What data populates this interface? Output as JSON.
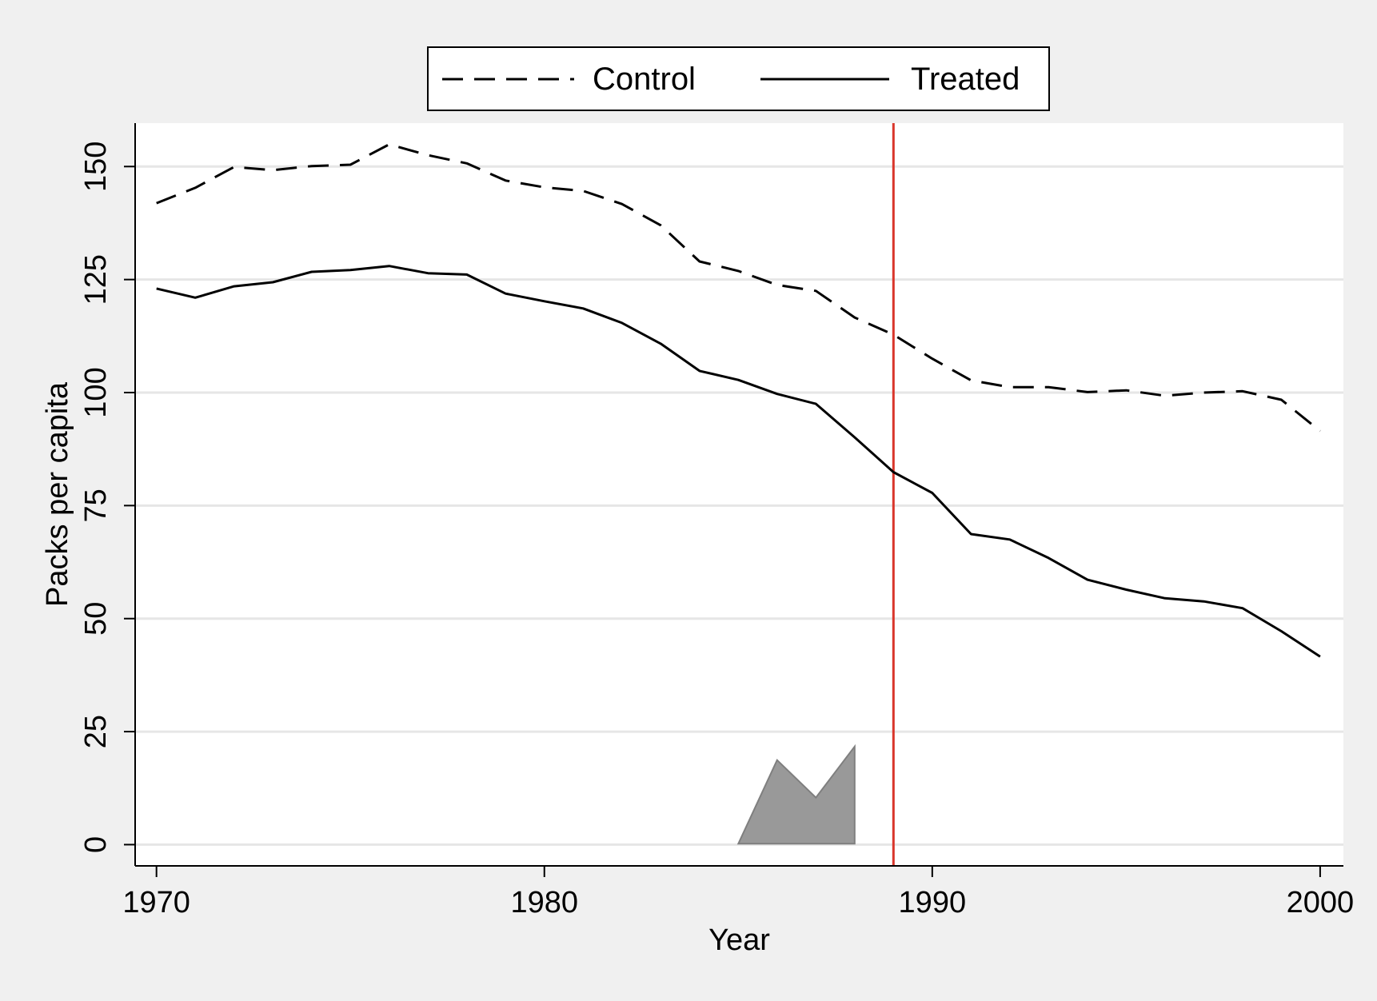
{
  "chart_data": {
    "type": "line",
    "title": "",
    "xlabel": "Year",
    "ylabel": "Packs per capita",
    "xlim": [
      1969.45,
      2000.6
    ],
    "ylim": [
      -4.7,
      159.6
    ],
    "x_ticks": [
      1970,
      1980,
      1990,
      2000
    ],
    "y_ticks": [
      0,
      25,
      50,
      75,
      100,
      125,
      150
    ],
    "grid": "horizontal",
    "legend_position": "top-center",
    "x": [
      1970,
      1971,
      1972,
      1973,
      1974,
      1975,
      1976,
      1977,
      1978,
      1979,
      1980,
      1981,
      1982,
      1983,
      1984,
      1985,
      1986,
      1987,
      1988,
      1989,
      1990,
      1991,
      1992,
      1993,
      1994,
      1995,
      1996,
      1997,
      1998,
      1999,
      2000
    ],
    "series": [
      {
        "name": "Control",
        "style": "dashed",
        "color": "#000000",
        "values": [
          141.9,
          145.3,
          149.9,
          149.2,
          150.1,
          150.4,
          154.9,
          152.5,
          150.7,
          146.9,
          145.4,
          144.6,
          141.7,
          137.0,
          129.0,
          126.9,
          123.8,
          122.5,
          116.6,
          112.8,
          107.5,
          102.7,
          101.2,
          101.2,
          100.1,
          100.5,
          99.3,
          100.0,
          100.3,
          98.4,
          91.5
        ]
      },
      {
        "name": "Treated",
        "style": "solid",
        "color": "#000000",
        "values": [
          123.0,
          121.0,
          123.5,
          124.4,
          126.7,
          127.1,
          128.0,
          126.4,
          126.1,
          121.9,
          120.2,
          118.6,
          115.4,
          110.8,
          104.8,
          102.8,
          99.7,
          97.5,
          90.1,
          82.4,
          77.8,
          68.7,
          67.5,
          63.4,
          58.6,
          56.4,
          54.5,
          53.8,
          52.3,
          47.2,
          41.6
        ]
      }
    ],
    "annotations": [
      {
        "type": "vertical-line",
        "x": 1989,
        "color": "#d9362b"
      },
      {
        "type": "polygon",
        "fill": "#999999",
        "points": [
          [
            1985.0,
            0.2
          ],
          [
            1986.0,
            18.7
          ],
          [
            1987.0,
            10.4
          ],
          [
            1988.0,
            21.7
          ],
          [
            1988.0,
            0.2
          ]
        ]
      }
    ],
    "colors": {
      "page_background": "#f0f0f0",
      "plot_background": "#ffffff",
      "grid": "#e6e6e6",
      "reference_line": "#d9362b"
    }
  }
}
